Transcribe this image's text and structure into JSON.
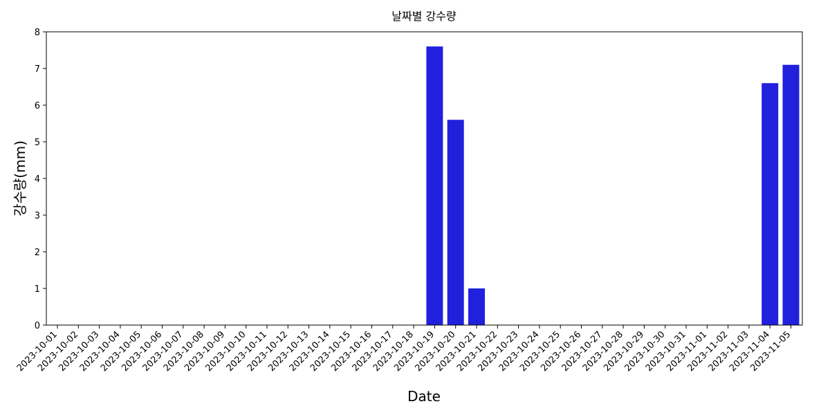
{
  "chart_data": {
    "type": "bar",
    "title": "날짜별 강수량",
    "xlabel": "Date",
    "ylabel": "강수량(mm)",
    "ylim": [
      0,
      8
    ],
    "yticks": [
      0,
      1,
      2,
      3,
      4,
      5,
      6,
      7,
      8
    ],
    "grid": false,
    "bar_color": "#2020dd",
    "categories": [
      "2023-10-01",
      "2023-10-02",
      "2023-10-03",
      "2023-10-04",
      "2023-10-05",
      "2023-10-06",
      "2023-10-07",
      "2023-10-08",
      "2023-10-09",
      "2023-10-10",
      "2023-10-11",
      "2023-10-12",
      "2023-10-13",
      "2023-10-14",
      "2023-10-15",
      "2023-10-16",
      "2023-10-17",
      "2023-10-18",
      "2023-10-19",
      "2023-10-20",
      "2023-10-21",
      "2023-10-22",
      "2023-10-23",
      "2023-10-24",
      "2023-10-25",
      "2023-10-26",
      "2023-10-27",
      "2023-10-28",
      "2023-10-29",
      "2023-10-30",
      "2023-10-31",
      "2023-11-01",
      "2023-11-02",
      "2023-11-03",
      "2023-11-04",
      "2023-11-05"
    ],
    "values": [
      0,
      0,
      0,
      0,
      0,
      0,
      0,
      0,
      0,
      0,
      0,
      0,
      0,
      0,
      0,
      0,
      0,
      0,
      7.6,
      5.6,
      1.0,
      0,
      0,
      0,
      0,
      0,
      0,
      0,
      0,
      0,
      0,
      0,
      0,
      0,
      6.6,
      7.1
    ]
  }
}
